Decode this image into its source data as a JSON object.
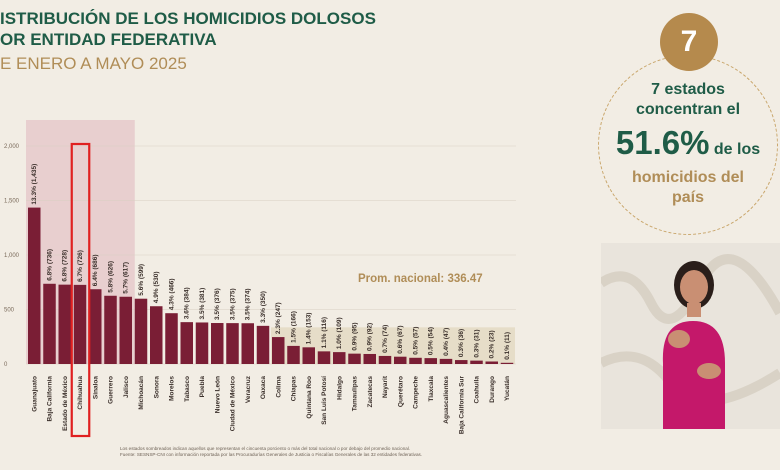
{
  "title": {
    "line1": "ISTRIBUCIÓN DE LOS HOMICIDIOS DOLOSOS",
    "line2": "OR ENTIDAD FEDERATIVA",
    "subtitle": "E ENERO A MAYO 2025"
  },
  "chart_data": {
    "type": "bar",
    "ylim": [
      0,
      2000
    ],
    "yticks": [
      "2,000",
      "1,500",
      "1,000",
      "500",
      "0"
    ],
    "categories": [
      "Guanajuato",
      "Baja California",
      "Estado de México",
      "Chihuahua",
      "Sinaloa",
      "Guerrero",
      "Jalisco",
      "Michoacán",
      "Sonora",
      "Morelos",
      "Tabasco",
      "Puebla",
      "Nuevo León",
      "Ciudad de México",
      "Veracruz",
      "Oaxaca",
      "Colima",
      "Chiapas",
      "Quintana Roo",
      "San Luis Potosí",
      "Hidalgo",
      "Tamaulipas",
      "Zacatecas",
      "Nayarit",
      "Querétaro",
      "Campeche",
      "Tlaxcala",
      "Aguascalientes",
      "Baja California Sur",
      "Coahuila",
      "Durango",
      "Yucatán"
    ],
    "values": [
      1435,
      736,
      728,
      726,
      686,
      626,
      617,
      599,
      530,
      466,
      384,
      381,
      376,
      375,
      374,
      350,
      247,
      166,
      153,
      116,
      109,
      95,
      92,
      74,
      67,
      57,
      54,
      47,
      36,
      31,
      23,
      11
    ],
    "labels": [
      "13.3% (1,435)",
      "6.8% (736)",
      "6.8% (728)",
      "6.7% (726)",
      "6.4% (686)",
      "5.8% (626)",
      "5.7% (617)",
      "5.6% (599)",
      "4.9% (530)",
      "4.3% (466)",
      "3.6% (384)",
      "3.5% (381)",
      "3.5% (376)",
      "3.5% (375)",
      "3.5% (374)",
      "3.3% (350)",
      "2.3% (247)",
      "1.5% (166)",
      "1.4% (153)",
      "1.1% (116)",
      "1.0% (109)",
      "0.9% (95)",
      "0.9% (92)",
      "0.7% (74)",
      "0.6% (67)",
      "0.5% (57)",
      "0.5% (54)",
      "0.4% (47)",
      "0.3% (36)",
      "0.3% (31)",
      "0.2% (23)",
      "0.1% (11)"
    ],
    "average": 336.47,
    "highlighted_count": 7,
    "boxed_category": "Chihuahua",
    "colors": {
      "bar": "#7a1e35",
      "highlight_band": "#e8cfcf",
      "average_band": "#e6ddc8",
      "box": "#e02020"
    }
  },
  "avg_label": "Prom. nacional: 336.47",
  "footnote": {
    "line1": "Los estados sombreados indican aquellos que representan el cincuenta porciento o más del total nacional o por debajo del promedio nacional.",
    "line2": "Fuente: SESNSP-CNI con información reportada por las Procuradurías Generales de Justicia o Fiscalías Generales de las 32 entidades federativas."
  },
  "stat": {
    "badge": "7",
    "line1": "7 estados",
    "line2": "concentran el",
    "big": "51.6%",
    "small": "de los",
    "line3": "homicidios del",
    "line4": "país"
  }
}
